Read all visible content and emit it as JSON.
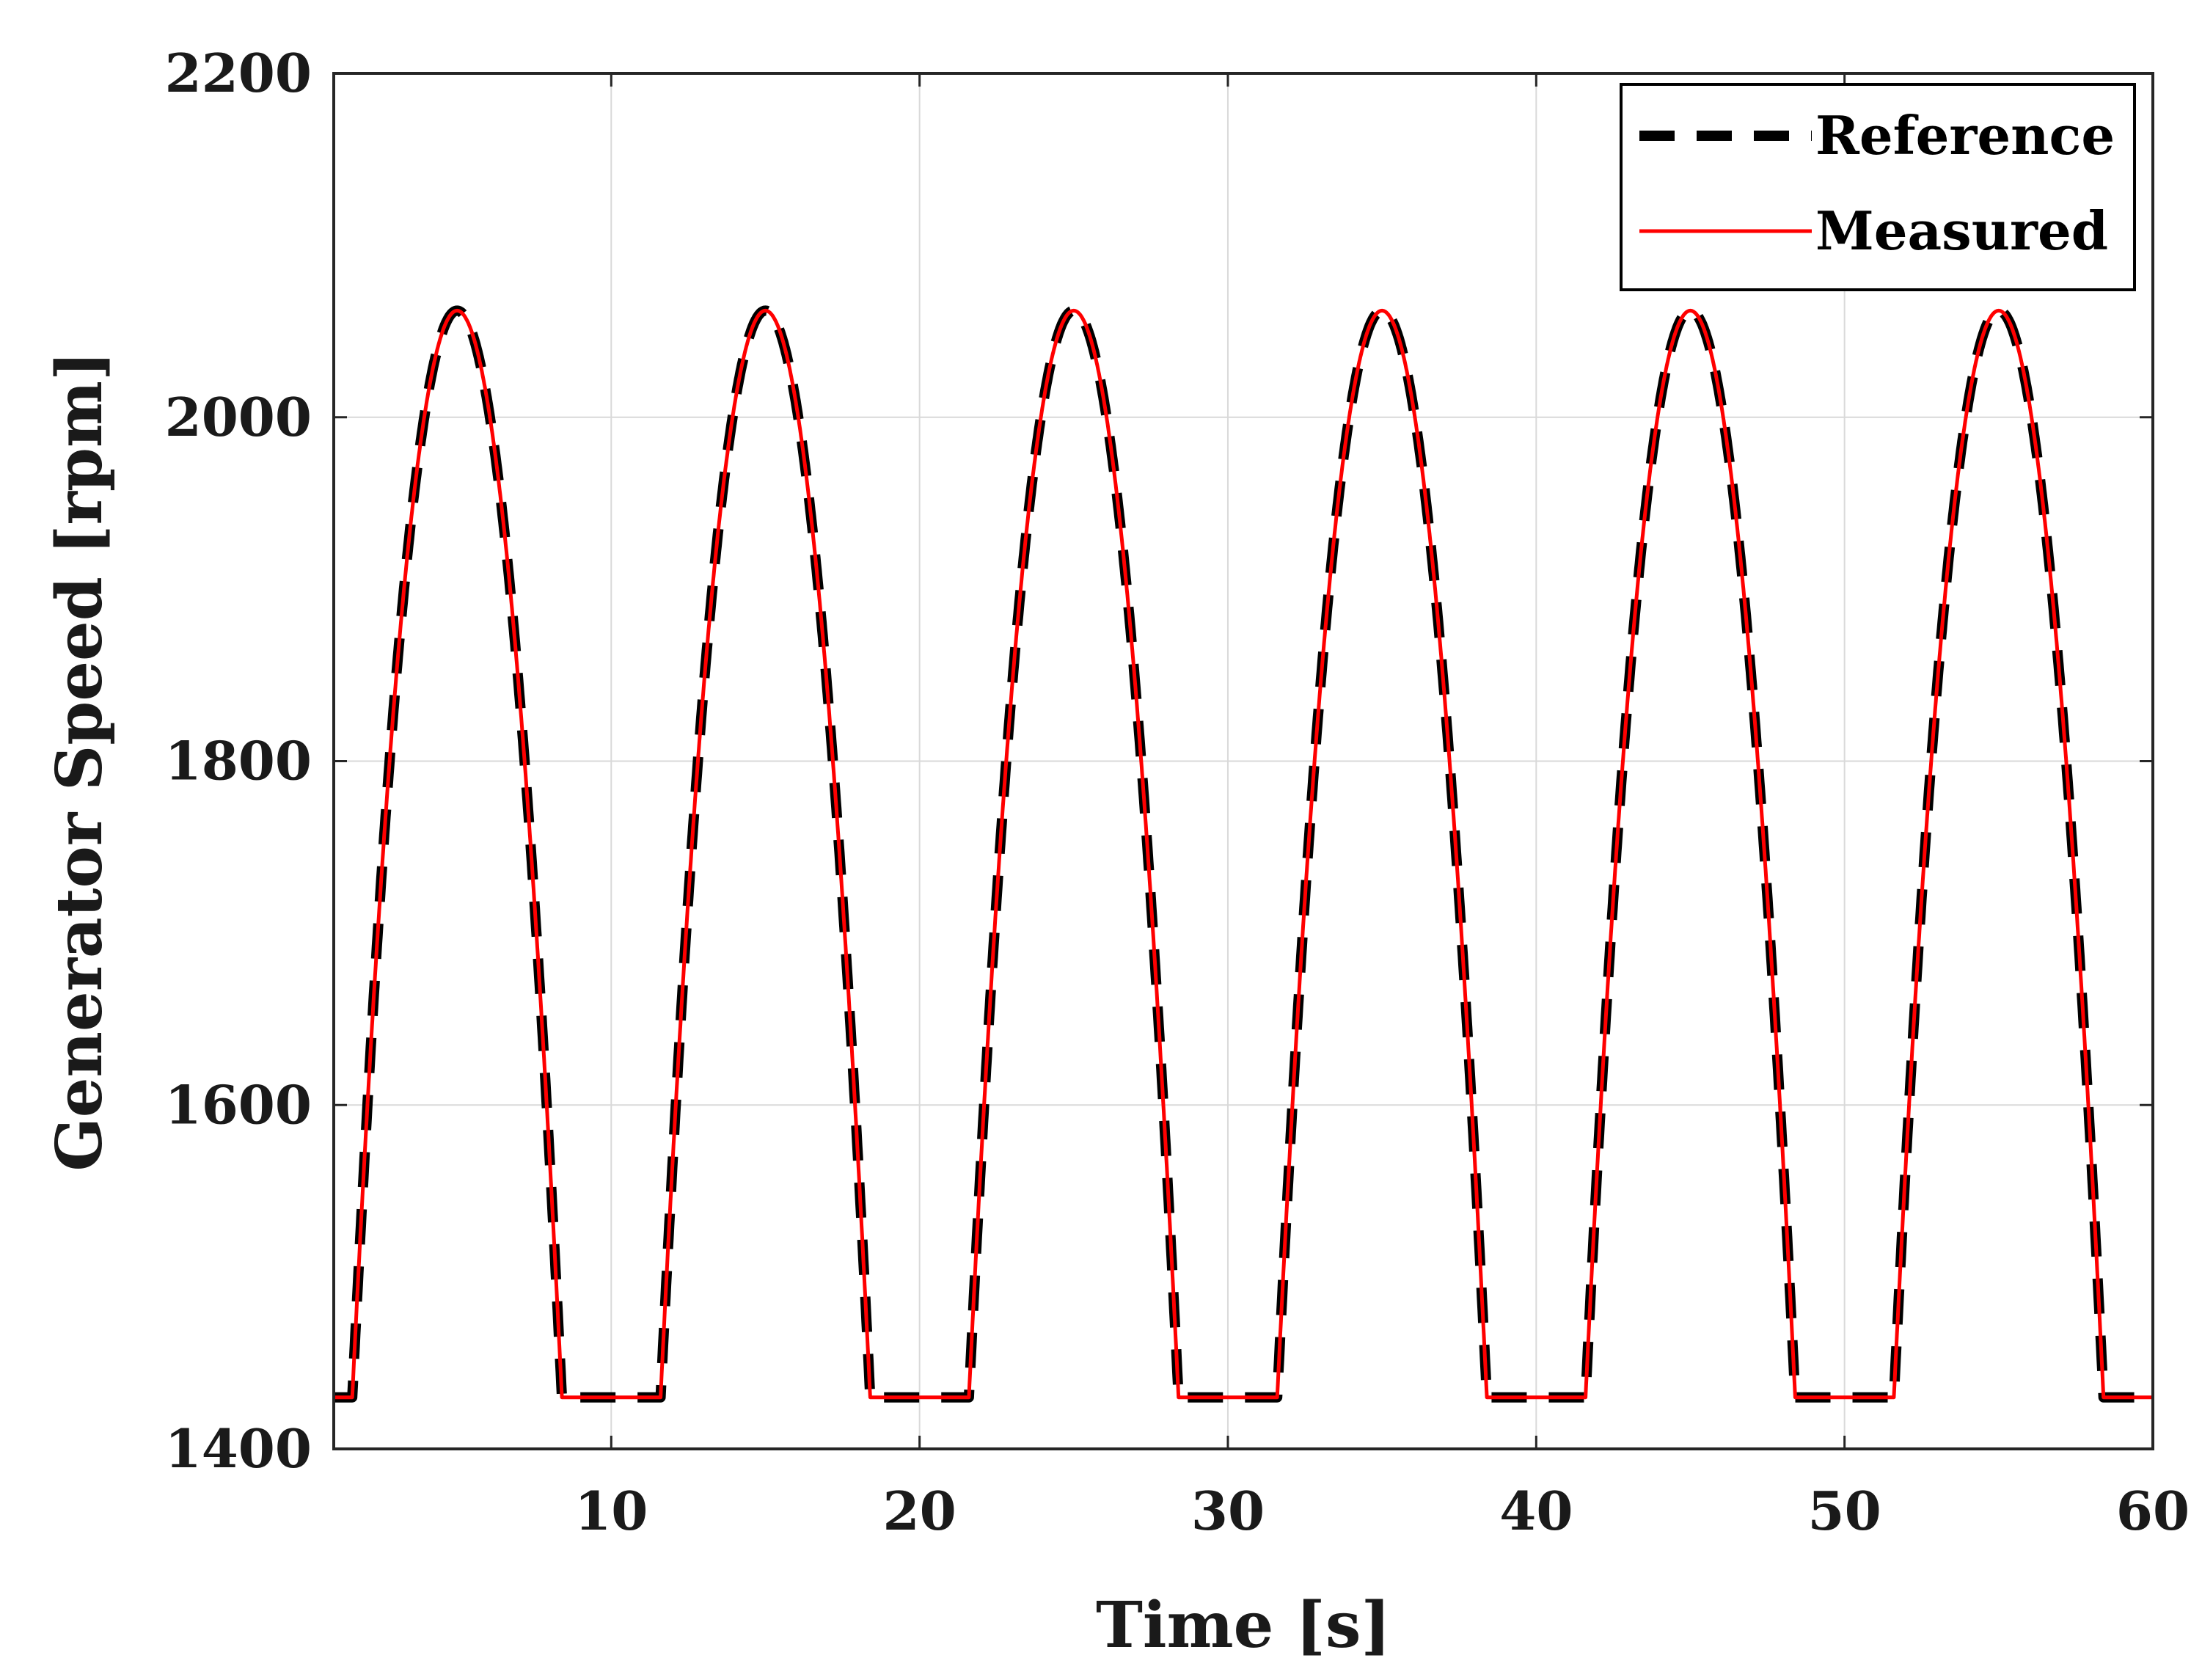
{
  "chart_data": {
    "type": "line",
    "title": "",
    "xlabel": "Time [s]",
    "ylabel": "Generator Speed [rpm]",
    "xlim": [
      1,
      60
    ],
    "ylim": [
      1400,
      2200
    ],
    "xticks": [
      10,
      20,
      30,
      40,
      50,
      60
    ],
    "yticks": [
      1400,
      1600,
      1800,
      2000,
      2200
    ],
    "xtick_labels": [
      "10",
      "20",
      "30",
      "40",
      "50",
      "60"
    ],
    "ytick_labels": [
      "1400",
      "1600",
      "1800",
      "2000",
      "2200"
    ],
    "grid": true,
    "legend_position": "top-right",
    "period_s": 10,
    "cycles": 6,
    "min_rpm": 1430,
    "max_rpm": 2062,
    "rise_start_s": 1.6,
    "peak_s": 5.0,
    "fall_end_s": 8.4,
    "series": [
      {
        "name": "Reference",
        "color": "#000000",
        "style": "dashed"
      },
      {
        "name": "Measured",
        "color": "#ff0000",
        "style": "solid"
      }
    ],
    "legend": [
      "Reference",
      "Measured"
    ]
  }
}
